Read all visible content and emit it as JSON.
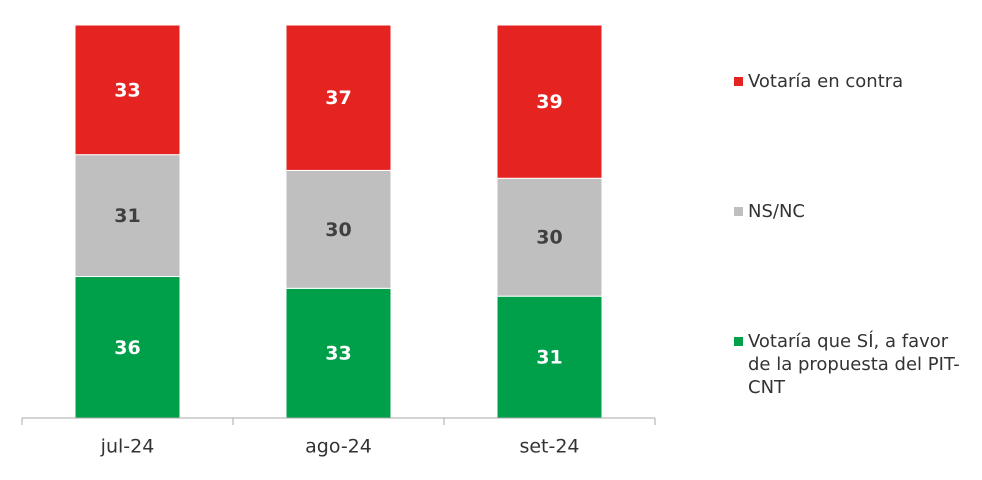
{
  "chart_data": {
    "type": "stacked_bar",
    "categories": [
      "jul-24",
      "ago-24",
      "set-24"
    ],
    "series": [
      {
        "name": "Votaría que SÍ, a favor de la propuesta del PIT-CNT",
        "color": "#00a04a",
        "label_color": "#ffffff",
        "values": [
          36,
          33,
          31
        ]
      },
      {
        "name": "NS/NC",
        "color": "#bfbfbf",
        "label_color": "#404040",
        "values": [
          31,
          30,
          30
        ]
      },
      {
        "name": "Votaría en contra",
        "color": "#e52421",
        "label_color": "#ffffff",
        "values": [
          33,
          37,
          39
        ]
      }
    ],
    "ylim": [
      0,
      100
    ]
  }
}
